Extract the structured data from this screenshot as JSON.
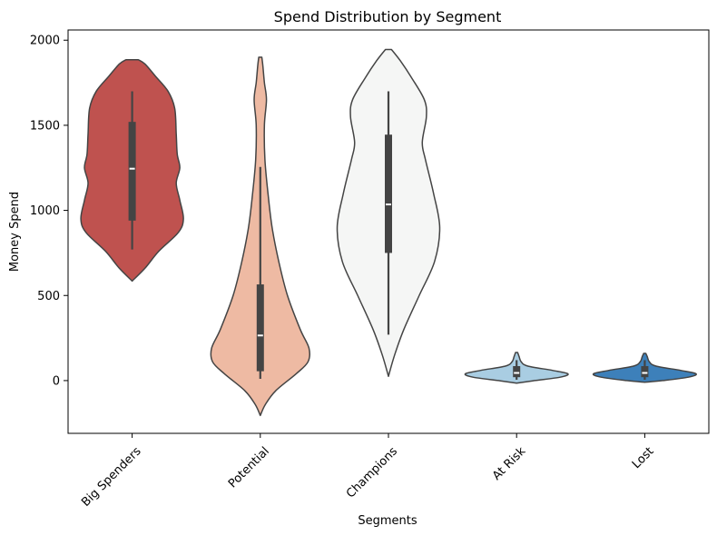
{
  "chart_data": {
    "type": "violin",
    "title": "Spend Distribution by Segment",
    "xlabel": "Segments",
    "ylabel": "Money Spend",
    "ylim": [
      -310,
      2060
    ],
    "yticks": [
      0,
      500,
      1000,
      1500,
      2000
    ],
    "categories": [
      "Big Spenders",
      "Potential",
      "Champions",
      "At Risk",
      "Lost"
    ],
    "grid": false,
    "violins": [
      {
        "category": "Big Spenders",
        "color": "#bf524f",
        "box": {
          "whisker_low": 770,
          "q1": 940,
          "median": 1245,
          "q3": 1520,
          "whisker_high": 1700
        },
        "profile": [
          [
            585,
            0
          ],
          [
            660,
            0.25
          ],
          [
            760,
            0.52
          ],
          [
            870,
            0.9
          ],
          [
            950,
            1.0
          ],
          [
            1060,
            0.93
          ],
          [
            1160,
            0.86
          ],
          [
            1250,
            0.93
          ],
          [
            1330,
            0.88
          ],
          [
            1450,
            0.86
          ],
          [
            1600,
            0.83
          ],
          [
            1700,
            0.7
          ],
          [
            1790,
            0.45
          ],
          [
            1860,
            0.25
          ],
          [
            1885,
            0.12
          ]
        ]
      },
      {
        "category": "Potential",
        "color": "#eebaa3",
        "box": {
          "whisker_low": 10,
          "q1": 55,
          "median": 265,
          "q3": 565,
          "whisker_high": 1255
        },
        "profile": [
          [
            -205,
            0
          ],
          [
            -140,
            0.1
          ],
          [
            -60,
            0.3
          ],
          [
            40,
            0.7
          ],
          [
            110,
            0.93
          ],
          [
            190,
            0.95
          ],
          [
            300,
            0.78
          ],
          [
            500,
            0.53
          ],
          [
            700,
            0.36
          ],
          [
            900,
            0.23
          ],
          [
            1100,
            0.15
          ],
          [
            1300,
            0.09
          ],
          [
            1500,
            0.08
          ],
          [
            1650,
            0.12
          ],
          [
            1750,
            0.08
          ],
          [
            1850,
            0.05
          ],
          [
            1900,
            0.03
          ]
        ]
      },
      {
        "category": "Champions",
        "color": "#f5f6f5",
        "box": {
          "whisker_low": 270,
          "q1": 750,
          "median": 1035,
          "q3": 1445,
          "whisker_high": 1700
        },
        "profile": [
          [
            25,
            0
          ],
          [
            150,
            0.12
          ],
          [
            300,
            0.3
          ],
          [
            500,
            0.6
          ],
          [
            700,
            0.9
          ],
          [
            900,
            1.0
          ],
          [
            1100,
            0.88
          ],
          [
            1300,
            0.72
          ],
          [
            1400,
            0.66
          ],
          [
            1550,
            0.74
          ],
          [
            1650,
            0.7
          ],
          [
            1780,
            0.45
          ],
          [
            1880,
            0.23
          ],
          [
            1945,
            0.06
          ]
        ]
      },
      {
        "category": "At Risk",
        "color": "#a9cde2",
        "box": {
          "whisker_low": 5,
          "q1": 20,
          "median": 45,
          "q3": 85,
          "whisker_high": 120
        },
        "profile": [
          [
            -15,
            0
          ],
          [
            0,
            0.35
          ],
          [
            20,
            0.85
          ],
          [
            40,
            1.0
          ],
          [
            60,
            0.7
          ],
          [
            85,
            0.22
          ],
          [
            110,
            0.09
          ],
          [
            140,
            0.05
          ],
          [
            165,
            0.02
          ]
        ]
      },
      {
        "category": "Lost",
        "color": "#3d80ba",
        "box": {
          "whisker_low": 5,
          "q1": 20,
          "median": 45,
          "q3": 85,
          "whisker_high": 120
        },
        "profile": [
          [
            -10,
            0
          ],
          [
            0,
            0.35
          ],
          [
            20,
            0.85
          ],
          [
            40,
            1.0
          ],
          [
            60,
            0.7
          ],
          [
            85,
            0.22
          ],
          [
            110,
            0.09
          ],
          [
            140,
            0.05
          ],
          [
            160,
            0.02
          ]
        ]
      }
    ]
  }
}
